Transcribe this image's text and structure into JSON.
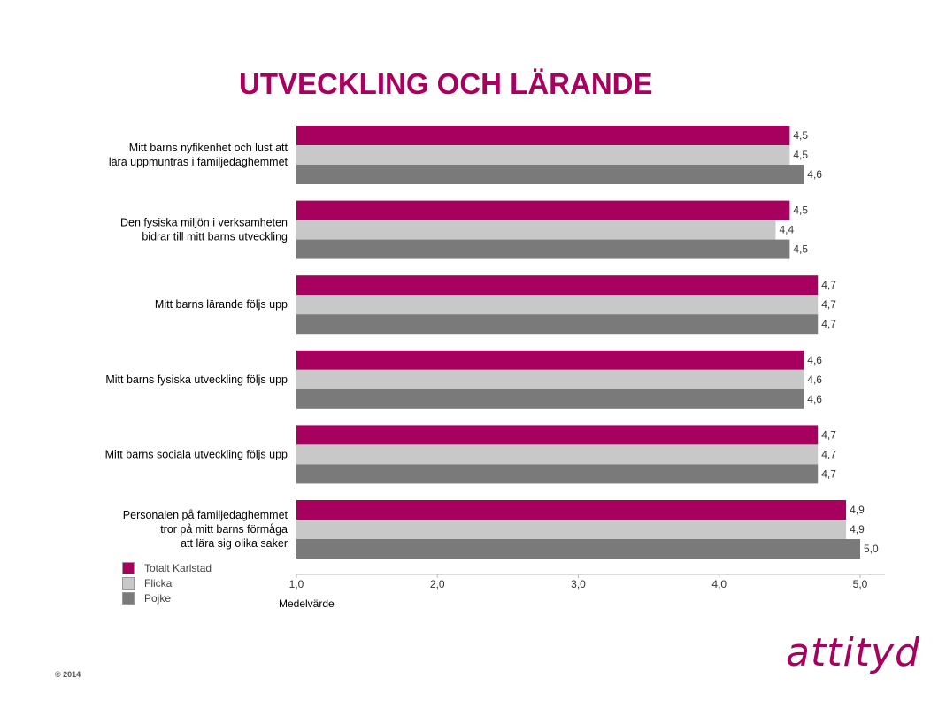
{
  "title": "UTVECKLING OCH LÄRANDE",
  "copyright": "© 2014",
  "brand": "attityd",
  "colors": {
    "totalt": "#a8005f",
    "flicka": "#c8c8c8",
    "pojke": "#7a7a7a",
    "title": "#a8005f"
  },
  "legend": [
    {
      "label": "Totalt Karlstad",
      "color": "#a8005f"
    },
    {
      "label": "Flicka",
      "color": "#c8c8c8"
    },
    {
      "label": "Pojke",
      "color": "#7a7a7a"
    }
  ],
  "chart_data": {
    "type": "bar",
    "orientation": "horizontal",
    "xlabel": "Medelvärde",
    "xlim": [
      1.0,
      5.0
    ],
    "xticks": [
      "1,0",
      "2,0",
      "3,0",
      "4,0",
      "5,0"
    ],
    "categories": [
      [
        "Mitt barns nyfikenhet och lust att",
        "lära uppmuntras i familjedaghemmet"
      ],
      [
        "Den fysiska miljön i verksamheten",
        "bidrar till mitt barns utveckling"
      ],
      [
        "Mitt barns lärande följs upp"
      ],
      [
        "Mitt barns fysiska utveckling följs upp"
      ],
      [
        "Mitt barns sociala utveckling följs upp"
      ],
      [
        "Personalen på familjedaghemmet",
        "tror på mitt barns förmåga",
        "att lära sig olika saker"
      ]
    ],
    "series": [
      {
        "name": "Totalt Karlstad",
        "values": [
          4.5,
          4.5,
          4.7,
          4.6,
          4.7,
          4.9
        ],
        "labels": [
          "4,5",
          "4,5",
          "4,7",
          "4,6",
          "4,7",
          "4,9"
        ]
      },
      {
        "name": "Flicka",
        "values": [
          4.5,
          4.4,
          4.7,
          4.6,
          4.7,
          4.9
        ],
        "labels": [
          "4,5",
          "4,4",
          "4,7",
          "4,6",
          "4,7",
          "4,9"
        ]
      },
      {
        "name": "Pojke",
        "values": [
          4.6,
          4.5,
          4.7,
          4.6,
          4.7,
          5.0
        ],
        "labels": [
          "4,6",
          "4,5",
          "4,7",
          "4,6",
          "4,7",
          "5,0"
        ]
      }
    ],
    "legend_position": "bottom-left",
    "grid": false
  }
}
